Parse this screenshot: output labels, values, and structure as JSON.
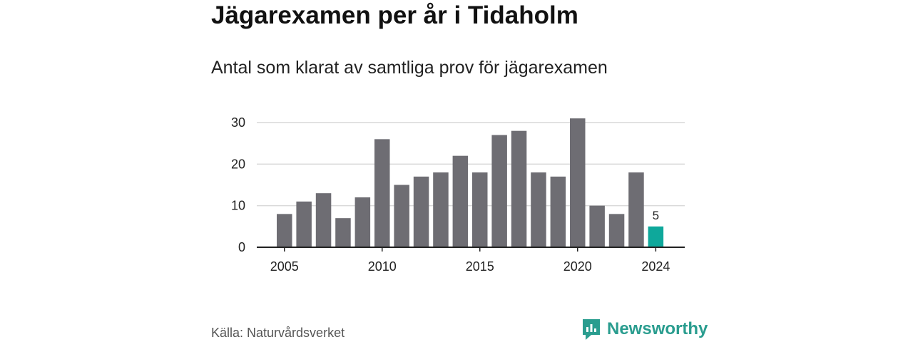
{
  "header": {
    "title": "Jägarexamen per år i Tidaholm",
    "subtitle": "Antal som klarat av samtliga prov för jägarexamen"
  },
  "footer": {
    "source": "Källa: Naturvårdsverket",
    "brand": "Newsworthy"
  },
  "colors": {
    "bar": "#6e6d73",
    "highlight": "#0ea89b",
    "grid": "#d9d9d9",
    "axis": "#222222",
    "brand": "#2a9d8f"
  },
  "chart_data": {
    "type": "bar",
    "categories": [
      "2005",
      "2006",
      "2007",
      "2008",
      "2009",
      "2010",
      "2011",
      "2012",
      "2013",
      "2014",
      "2015",
      "2016",
      "2017",
      "2018",
      "2019",
      "2020",
      "2021",
      "2022",
      "2023",
      "2024"
    ],
    "values": [
      8,
      11,
      13,
      7,
      12,
      26,
      15,
      17,
      18,
      22,
      18,
      27,
      28,
      18,
      17,
      31,
      10,
      8,
      18,
      5
    ],
    "xticks": [
      "2005",
      "2010",
      "2015",
      "2020",
      "2024"
    ],
    "yticks": [
      0,
      10,
      20,
      30
    ],
    "ylim": [
      0,
      30
    ],
    "highlight": "2024",
    "data_labels": [
      {
        "category": "2024",
        "text": "5"
      }
    ],
    "grid": true
  }
}
